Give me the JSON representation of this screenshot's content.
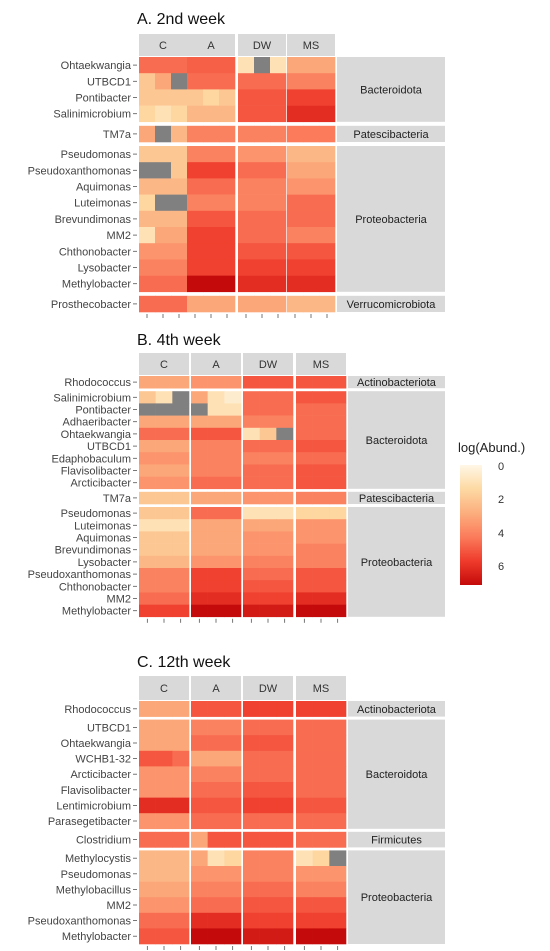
{
  "legend": {
    "title": "log(Abund.)",
    "ticks": [
      "0",
      "2",
      "4",
      "6"
    ],
    "low_color": "#fff7e6",
    "high_color": "#c40a0a",
    "na_color": "#808080",
    "range": [
      0,
      7
    ]
  },
  "chart_data": [
    {
      "type": "heatmap",
      "title": "A. 2nd week",
      "columns": [
        "C",
        "A",
        "DW",
        "MS"
      ],
      "groups": [
        {
          "name": "Bacteroidota",
          "rows": [
            {
              "label": "Ohtaekwangia",
              "values": [
                4.5,
                4.5,
                4.5,
                4.8,
                4.8,
                4.8,
                1.0,
                null,
                1.0,
                3.0,
                3.0,
                3.0
              ]
            },
            {
              "label": "UTBCD1",
              "values": [
                2.0,
                3.0,
                null,
                4.5,
                4.5,
                4.5,
                4.5,
                4.5,
                4.5,
                4.0,
                4.0,
                4.0
              ]
            },
            {
              "label": "Pontibacter",
              "values": [
                2.0,
                2.0,
                2.0,
                2.0,
                1.5,
                2.0,
                5.0,
                5.0,
                5.0,
                5.5,
                5.5,
                5.5
              ]
            },
            {
              "label": "Salinimicrobium",
              "values": [
                1.5,
                1.0,
                1.5,
                2.5,
                2.5,
                2.5,
                5.0,
                5.0,
                5.0,
                6.0,
                6.0,
                6.0
              ]
            }
          ]
        },
        {
          "name": "Patescibacteria",
          "rows": [
            {
              "label": "TM7a",
              "values": [
                3.0,
                null,
                2.5,
                4.0,
                4.0,
                4.0,
                4.0,
                4.0,
                4.0,
                4.2,
                4.2,
                4.2
              ]
            }
          ]
        },
        {
          "name": "Proteobacteria",
          "rows": [
            {
              "label": "Pseudomonas",
              "values": [
                2.0,
                2.0,
                2.0,
                4.0,
                4.0,
                4.0,
                3.5,
                3.5,
                3.5,
                2.5,
                2.5,
                2.5
              ]
            },
            {
              "label": "Pseudoxanthomonas",
              "values": [
                null,
                null,
                2.0,
                5.5,
                5.5,
                5.5,
                4.5,
                4.5,
                4.5,
                3.0,
                3.0,
                3.0
              ]
            },
            {
              "label": "Aquimonas",
              "values": [
                2.5,
                2.5,
                2.5,
                4.5,
                4.5,
                4.5,
                4.0,
                4.0,
                4.0,
                3.5,
                3.5,
                3.5
              ]
            },
            {
              "label": "Luteimonas",
              "values": [
                1.5,
                null,
                null,
                4.0,
                4.0,
                4.0,
                4.0,
                4.0,
                4.0,
                4.5,
                4.5,
                4.5
              ]
            },
            {
              "label": "Brevundimonas",
              "values": [
                2.5,
                2.5,
                2.5,
                5.0,
                5.0,
                5.0,
                4.5,
                4.5,
                4.5,
                4.5,
                4.5,
                4.5
              ]
            },
            {
              "label": "MM2",
              "values": [
                1.0,
                3.0,
                3.0,
                5.5,
                5.5,
                5.5,
                4.5,
                4.5,
                4.5,
                4.0,
                4.0,
                4.0
              ]
            },
            {
              "label": "Chthonobacter",
              "values": [
                3.5,
                3.5,
                3.5,
                5.5,
                5.5,
                5.5,
                5.0,
                5.0,
                5.0,
                5.0,
                5.0,
                5.0
              ]
            },
            {
              "label": "Lysobacter",
              "values": [
                4.0,
                4.0,
                4.0,
                5.5,
                5.5,
                5.5,
                5.5,
                5.5,
                5.5,
                5.5,
                5.5,
                5.5
              ]
            },
            {
              "label": "Methylobacter",
              "values": [
                4.5,
                4.5,
                4.5,
                7.0,
                7.0,
                7.0,
                6.0,
                6.0,
                6.0,
                6.0,
                6.0,
                6.0
              ]
            }
          ]
        },
        {
          "name": "Verrucomicrobiota",
          "rows": [
            {
              "label": "Prosthecobacter",
              "values": [
                4.5,
                4.5,
                4.5,
                3.0,
                3.0,
                3.0,
                3.0,
                3.0,
                3.0,
                2.5,
                2.5,
                2.5
              ]
            }
          ]
        }
      ]
    },
    {
      "type": "heatmap",
      "title": "B. 4th week",
      "columns": [
        "C",
        "A",
        "DW",
        "MS"
      ],
      "groups": [
        {
          "name": "Actinobacteriota",
          "rows": [
            {
              "label": "Rhodococcus",
              "values": [
                3.0,
                3.0,
                3.0,
                3.5,
                3.5,
                3.5,
                5.0,
                5.0,
                5.0,
                5.0,
                5.0,
                5.0
              ]
            }
          ]
        },
        {
          "name": "Bacteroidota",
          "rows": [
            {
              "label": "Salinimicrobium",
              "values": [
                2.0,
                1.0,
                null,
                3.0,
                1.0,
                0.5,
                4.5,
                4.5,
                4.5,
                5.0,
                5.0,
                5.0
              ]
            },
            {
              "label": "Pontibacter",
              "values": [
                null,
                null,
                null,
                null,
                1.0,
                1.0,
                4.5,
                4.5,
                4.5,
                4.5,
                4.5,
                4.5
              ]
            },
            {
              "label": "Adhaeribacter",
              "values": [
                3.0,
                3.0,
                3.0,
                3.0,
                3.0,
                3.0,
                4.0,
                4.0,
                4.0,
                4.5,
                4.5,
                4.5
              ]
            },
            {
              "label": "Ohtaekwangia",
              "values": [
                4.5,
                4.5,
                4.5,
                5.0,
                5.0,
                5.0,
                1.0,
                2.0,
                null,
                4.5,
                4.5,
                4.5
              ]
            },
            {
              "label": "UTBCD1",
              "values": [
                3.0,
                3.0,
                3.0,
                4.0,
                4.0,
                4.0,
                4.5,
                4.5,
                4.5,
                5.0,
                5.0,
                5.0
              ]
            },
            {
              "label": "Edaphobaculum",
              "values": [
                3.5,
                3.5,
                3.5,
                4.0,
                4.0,
                4.0,
                4.0,
                4.0,
                4.0,
                4.5,
                4.5,
                4.5
              ]
            },
            {
              "label": "Flavisolibacter",
              "values": [
                3.0,
                3.0,
                3.0,
                4.0,
                4.0,
                4.0,
                4.5,
                4.5,
                4.5,
                5.0,
                5.0,
                5.0
              ]
            },
            {
              "label": "Arcticibacter",
              "values": [
                3.5,
                3.5,
                3.5,
                4.5,
                4.5,
                4.5,
                4.5,
                4.5,
                4.5,
                5.0,
                5.0,
                5.0
              ]
            }
          ]
        },
        {
          "name": "Patescibacteria",
          "rows": [
            {
              "label": "TM7a",
              "values": [
                2.0,
                2.0,
                2.0,
                3.0,
                3.0,
                3.0,
                3.5,
                3.5,
                3.5,
                4.0,
                4.0,
                4.0
              ]
            }
          ]
        },
        {
          "name": "Proteobacteria",
          "rows": [
            {
              "label": "Pseudomonas",
              "values": [
                2.0,
                2.0,
                2.0,
                4.5,
                4.5,
                4.5,
                1.0,
                1.0,
                1.0,
                1.5,
                1.5,
                1.5
              ]
            },
            {
              "label": "Luteimonas",
              "values": [
                1.0,
                1.0,
                1.0,
                3.0,
                3.0,
                3.0,
                3.0,
                3.0,
                3.0,
                3.5,
                3.5,
                3.5
              ]
            },
            {
              "label": "Aquimonas",
              "values": [
                2.0,
                2.0,
                2.0,
                3.0,
                3.0,
                3.0,
                3.5,
                3.5,
                3.5,
                3.5,
                3.5,
                3.5
              ]
            },
            {
              "label": "Brevundimonas",
              "values": [
                2.0,
                2.0,
                2.0,
                3.0,
                3.0,
                3.0,
                3.5,
                3.5,
                3.5,
                4.0,
                4.0,
                4.0
              ]
            },
            {
              "label": "Lysobacter",
              "values": [
                2.5,
                2.5,
                2.5,
                3.5,
                3.5,
                3.5,
                4.0,
                4.0,
                4.0,
                4.0,
                4.0,
                4.0
              ]
            },
            {
              "label": "Pseudoxanthomonas",
              "values": [
                4.0,
                4.0,
                4.0,
                5.5,
                5.5,
                5.5,
                4.5,
                4.5,
                4.5,
                5.0,
                5.0,
                5.0
              ]
            },
            {
              "label": "Chthonobacter",
              "values": [
                4.0,
                4.0,
                4.0,
                5.5,
                5.5,
                5.5,
                5.0,
                5.0,
                5.0,
                5.0,
                5.0,
                5.0
              ]
            },
            {
              "label": "MM2",
              "values": [
                4.5,
                4.5,
                4.5,
                6.0,
                6.0,
                6.0,
                5.5,
                5.5,
                5.5,
                6.0,
                6.0,
                6.0
              ]
            },
            {
              "label": "Methylobacter",
              "values": [
                5.5,
                5.5,
                5.5,
                7.0,
                7.0,
                7.0,
                6.5,
                6.5,
                6.5,
                7.0,
                7.0,
                7.0
              ]
            }
          ]
        }
      ]
    },
    {
      "type": "heatmap",
      "title": "C. 12th week",
      "columns": [
        "C",
        "A",
        "DW",
        "MS"
      ],
      "groups": [
        {
          "name": "Actinobacteriota",
          "rows": [
            {
              "label": "Rhodococcus",
              "values": [
                3.0,
                3.0,
                3.0,
                5.0,
                5.0,
                5.0,
                5.5,
                5.5,
                5.5,
                5.5,
                5.5,
                5.5
              ]
            }
          ]
        },
        {
          "name": "Bacteroidota",
          "rows": [
            {
              "label": "UTBCD1",
              "values": [
                3.0,
                3.0,
                3.0,
                4.0,
                4.0,
                4.0,
                4.5,
                4.5,
                4.5,
                4.5,
                4.5,
                4.5
              ]
            },
            {
              "label": "Ohtaekwangia",
              "values": [
                3.0,
                3.0,
                3.0,
                4.5,
                4.5,
                4.5,
                5.0,
                5.0,
                5.0,
                4.5,
                4.5,
                4.5
              ]
            },
            {
              "label": "WCHB1-32",
              "values": [
                5.0,
                5.0,
                4.5,
                3.0,
                3.0,
                3.0,
                4.5,
                4.5,
                4.5,
                4.5,
                4.5,
                4.5
              ]
            },
            {
              "label": "Arcticibacter",
              "values": [
                3.5,
                3.5,
                3.5,
                4.0,
                4.0,
                4.0,
                4.5,
                4.5,
                4.5,
                4.5,
                4.5,
                4.5
              ]
            },
            {
              "label": "Flavisolibacter",
              "values": [
                3.5,
                3.5,
                3.5,
                4.5,
                4.5,
                4.5,
                5.0,
                5.0,
                5.0,
                4.5,
                4.5,
                4.5
              ]
            },
            {
              "label": "Lentimicrobium",
              "values": [
                6.0,
                6.0,
                6.0,
                5.0,
                5.0,
                5.0,
                5.5,
                5.5,
                5.5,
                5.0,
                5.0,
                5.0
              ]
            },
            {
              "label": "Parasegetibacter",
              "values": [
                3.5,
                3.5,
                3.5,
                4.5,
                4.5,
                4.5,
                4.5,
                4.5,
                4.5,
                4.5,
                4.5,
                4.5
              ]
            }
          ]
        },
        {
          "name": "Firmicutes",
          "rows": [
            {
              "label": "Clostridium",
              "values": [
                4.5,
                4.5,
                4.5,
                3.0,
                5.0,
                5.0,
                5.0,
                5.0,
                5.0,
                4.5,
                4.5,
                4.5
              ]
            }
          ]
        },
        {
          "name": "Proteobacteria",
          "rows": [
            {
              "label": "Methylocystis",
              "values": [
                2.5,
                2.5,
                2.5,
                3.0,
                1.0,
                1.5,
                4.0,
                4.0,
                4.0,
                1.0,
                1.5,
                null
              ]
            },
            {
              "label": "Pseudomonas",
              "values": [
                2.5,
                2.5,
                2.5,
                3.5,
                3.5,
                3.5,
                4.0,
                4.0,
                4.0,
                3.5,
                3.5,
                3.5
              ]
            },
            {
              "label": "Methylobacillus",
              "values": [
                3.0,
                3.0,
                3.0,
                4.0,
                4.0,
                4.0,
                4.5,
                4.5,
                4.5,
                4.0,
                4.0,
                4.0
              ]
            },
            {
              "label": "MM2",
              "values": [
                3.5,
                3.5,
                3.5,
                4.5,
                4.5,
                4.5,
                5.0,
                5.0,
                5.0,
                5.0,
                5.0,
                5.0
              ]
            },
            {
              "label": "Pseudoxanthomonas",
              "values": [
                4.5,
                4.5,
                4.5,
                6.0,
                6.0,
                6.0,
                5.5,
                5.5,
                5.5,
                5.5,
                5.5,
                5.5
              ]
            },
            {
              "label": "Methylobacter",
              "values": [
                5.0,
                5.0,
                5.0,
                7.0,
                7.0,
                7.0,
                6.5,
                6.5,
                6.5,
                7.0,
                7.0,
                7.0
              ]
            }
          ]
        }
      ]
    }
  ]
}
